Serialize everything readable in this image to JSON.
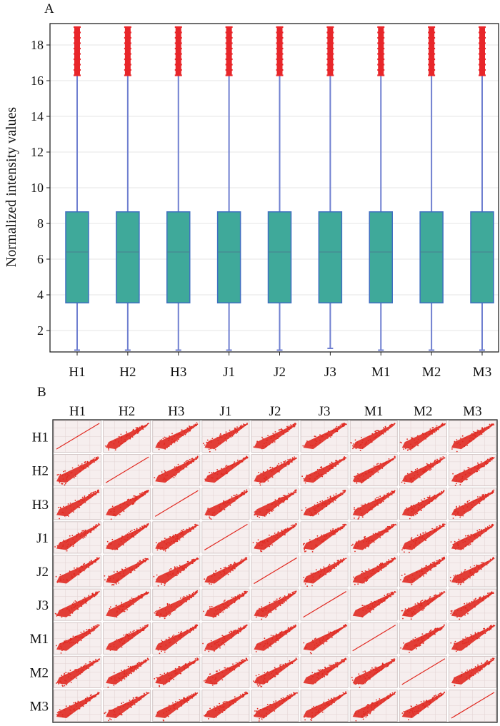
{
  "chart_data": [
    {
      "panel_label": "A",
      "type": "box",
      "ylabel": "Normalized intensity values",
      "xlabel": "",
      "ylim": [
        0.8,
        19.2
      ],
      "yticks": [
        2,
        4,
        6,
        8,
        10,
        12,
        14,
        16,
        18
      ],
      "grid": true,
      "categories": [
        "H1",
        "H2",
        "H3",
        "J1",
        "J2",
        "J3",
        "M1",
        "M2",
        "M3"
      ],
      "boxes": [
        {
          "name": "H1",
          "whisker_low": 0.9,
          "q1": 3.55,
          "median": 6.4,
          "q3": 8.65,
          "whisker_high": 16.3,
          "outlier_low": 16.3,
          "outlier_high": 19.0
        },
        {
          "name": "H2",
          "whisker_low": 0.9,
          "q1": 3.55,
          "median": 6.4,
          "q3": 8.65,
          "whisker_high": 16.3,
          "outlier_low": 16.3,
          "outlier_high": 19.0
        },
        {
          "name": "H3",
          "whisker_low": 0.9,
          "q1": 3.55,
          "median": 6.4,
          "q3": 8.65,
          "whisker_high": 16.3,
          "outlier_low": 16.3,
          "outlier_high": 19.0
        },
        {
          "name": "J1",
          "whisker_low": 0.9,
          "q1": 3.55,
          "median": 6.4,
          "q3": 8.65,
          "whisker_high": 16.3,
          "outlier_low": 16.3,
          "outlier_high": 19.0
        },
        {
          "name": "J2",
          "whisker_low": 0.9,
          "q1": 3.55,
          "median": 6.4,
          "q3": 8.65,
          "whisker_high": 16.3,
          "outlier_low": 16.3,
          "outlier_high": 19.0
        },
        {
          "name": "J3",
          "whisker_low": 1.0,
          "q1": 3.55,
          "median": 6.4,
          "q3": 8.65,
          "whisker_high": 16.3,
          "outlier_low": 16.3,
          "outlier_high": 19.0
        },
        {
          "name": "M1",
          "whisker_low": 0.9,
          "q1": 3.55,
          "median": 6.4,
          "q3": 8.65,
          "whisker_high": 16.3,
          "outlier_low": 16.3,
          "outlier_high": 19.0
        },
        {
          "name": "M2",
          "whisker_low": 0.9,
          "q1": 3.55,
          "median": 6.4,
          "q3": 8.65,
          "whisker_high": 16.3,
          "outlier_low": 16.3,
          "outlier_high": 19.0
        },
        {
          "name": "M3",
          "whisker_low": 0.9,
          "q1": 3.55,
          "median": 6.4,
          "q3": 8.65,
          "whisker_high": 16.3,
          "outlier_low": 16.3,
          "outlier_high": 19.0
        }
      ],
      "colors": {
        "box_fill": "#3fa99a",
        "box_edge": "#3f6fc0",
        "whisker": "#6f7fd0",
        "outlier": "#e8262a",
        "grid": "#e6e6e6"
      }
    },
    {
      "panel_label": "B",
      "type": "scatter-matrix",
      "samples": [
        "H1",
        "H2",
        "H3",
        "J1",
        "J2",
        "J3",
        "M1",
        "M2",
        "M3"
      ],
      "diagonal": "identity line",
      "colors": {
        "point": "#e02a22",
        "cell_bg": "#f6eeee",
        "cell_grid": "#e2d2d2"
      }
    }
  ]
}
